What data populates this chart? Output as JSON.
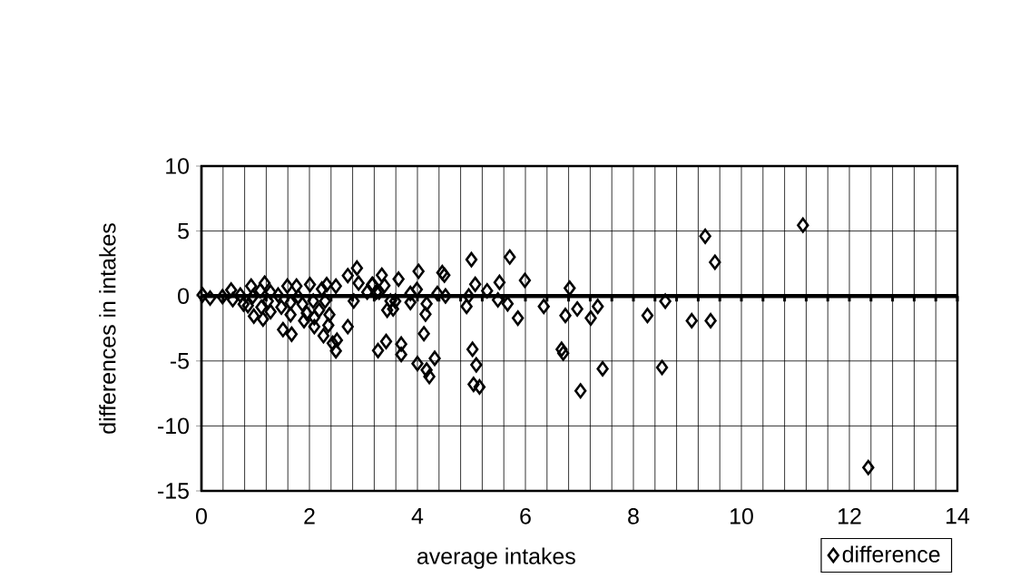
{
  "chart_data": {
    "type": "scatter",
    "xlabel": "average intakes",
    "ylabel": "differences in intakes",
    "xlim": [
      0,
      14
    ],
    "ylim": [
      -15,
      10
    ],
    "xticks": [
      0,
      {
        "value": 0.4,
        "label": null
      },
      {
        "value": 0.8,
        "label": null
      },
      {
        "value": 1.2,
        "label": null
      },
      {
        "value": 1.6,
        "label": null
      },
      2,
      {
        "value": 2.4,
        "label": null
      },
      {
        "value": 2.8,
        "label": null
      },
      {
        "value": 3.2,
        "label": null
      },
      {
        "value": 3.6,
        "label": null
      },
      4,
      {
        "value": 4.4,
        "label": null
      },
      {
        "value": 4.8,
        "label": null
      },
      {
        "value": 5.2,
        "label": null
      },
      {
        "value": 5.6,
        "label": null
      },
      6,
      {
        "value": 6.4,
        "label": null
      },
      {
        "value": 6.8,
        "label": null
      },
      {
        "value": 7.2,
        "label": null
      },
      {
        "value": 7.6,
        "label": null
      },
      8,
      {
        "value": 8.4,
        "label": null
      },
      {
        "value": 8.8,
        "label": null
      },
      {
        "value": 9.2,
        "label": null
      },
      {
        "value": 9.6,
        "label": null
      },
      10,
      {
        "value": 10.4,
        "label": null
      },
      {
        "value": 10.8,
        "label": null
      },
      {
        "value": 11.2,
        "label": null
      },
      {
        "value": 11.6,
        "label": null
      },
      12,
      {
        "value": 12.4,
        "label": null
      },
      {
        "value": 12.8,
        "label": null
      },
      {
        "value": 13.2,
        "label": null
      },
      {
        "value": 13.6,
        "label": null
      },
      14
    ],
    "yticks": [
      -15,
      -10,
      -5,
      0,
      5,
      10
    ],
    "grid": true,
    "legend": "bottom right",
    "marker": "diamond",
    "series": [
      {
        "name": "difference",
        "color": "#000000",
        "x": [
          0.02,
          0.16,
          0.39,
          0.55,
          0.58,
          0.72,
          0.78,
          0.86,
          0.92,
          0.95,
          0.97,
          1.09,
          1.11,
          1.14,
          1.17,
          1.23,
          1.28,
          1.28,
          1.42,
          1.48,
          1.51,
          1.59,
          1.65,
          1.65,
          1.67,
          1.76,
          1.79,
          1.87,
          1.9,
          1.95,
          2.01,
          2.07,
          2.09,
          2.09,
          2.18,
          2.23,
          2.26,
          2.29,
          2.32,
          2.35,
          2.37,
          2.43,
          2.49,
          2.51,
          2.49,
          2.71,
          2.71,
          2.82,
          2.88,
          2.91,
          3.07,
          3.16,
          3.24,
          3.44,
          3.5,
          3.17,
          3.34,
          3.39,
          3.29,
          3.27,
          3.42,
          3.55,
          3.59,
          3.65,
          3.7,
          3.7,
          3.87,
          3.87,
          3.99,
          4.0,
          4.02,
          4.12,
          4.15,
          4.17,
          4.17,
          4.22,
          4.32,
          4.37,
          4.46,
          4.5,
          4.52,
          4.91,
          4.95,
          5.0,
          5.02,
          5.04,
          5.07,
          5.09,
          5.15,
          5.29,
          5.49,
          5.52,
          5.67,
          5.71,
          5.86,
          5.99,
          6.34,
          6.67,
          6.7,
          6.74,
          6.82,
          6.96,
          7.02,
          7.21,
          7.34,
          7.43,
          8.26,
          8.53,
          8.59,
          9.08,
          9.33,
          9.43,
          9.51,
          11.14,
          12.35
        ],
        "values": [
          0.08,
          -0.16,
          -0.05,
          0.46,
          -0.28,
          0.07,
          -0.63,
          -0.74,
          0.76,
          -0.05,
          -1.55,
          0.42,
          -0.86,
          -1.78,
          0.99,
          -0.39,
          0.3,
          -1.21,
          0.07,
          -0.86,
          -2.59,
          0.76,
          -0.51,
          -1.44,
          -2.94,
          0.76,
          -0.05,
          -0.63,
          -1.9,
          -1.32,
          0.88,
          -0.39,
          -1.67,
          -2.36,
          -1.09,
          0.53,
          -3.06,
          -0.39,
          0.88,
          -2.25,
          -1.44,
          -3.64,
          -4.22,
          -3.4,
          0.76,
          1.57,
          -2.36,
          -0.39,
          2.15,
          0.99,
          0.3,
          0.88,
          0.3,
          -1.09,
          -0.39,
          0.9,
          1.6,
          0.8,
          0.3,
          -4.2,
          -3.5,
          -1.0,
          -0.4,
          1.3,
          -3.7,
          -4.5,
          0.2,
          -0.5,
          0.5,
          -5.2,
          1.9,
          -2.9,
          -1.4,
          -0.6,
          -5.7,
          -6.2,
          -4.8,
          0.2,
          1.8,
          1.6,
          0.0,
          -0.8,
          0.0,
          2.8,
          -4.1,
          -6.8,
          0.9,
          -5.3,
          -7.0,
          0.4,
          -0.3,
          1.05,
          -0.6,
          3.0,
          -1.7,
          1.2,
          -0.8,
          -4.1,
          -4.4,
          -1.5,
          0.6,
          -1.0,
          -7.3,
          -1.7,
          -0.8,
          -5.6,
          -1.5,
          -5.5,
          -0.4,
          -1.9,
          4.6,
          -1.9,
          2.6,
          5.45,
          -13.2
        ]
      }
    ]
  }
}
